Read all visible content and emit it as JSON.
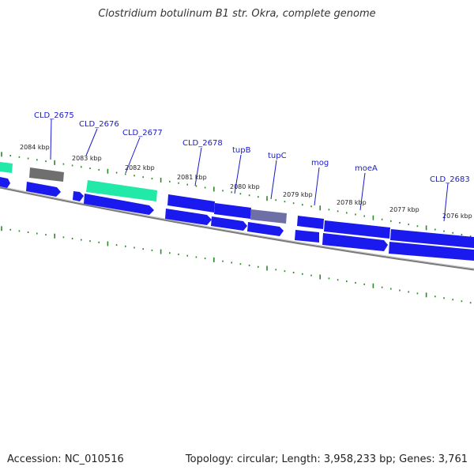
{
  "title": "Clostridium botulinum B1 str. Okra, complete genome",
  "footer": {
    "accession": "Accession: NC_010516",
    "summary": "Topology: circular; Length: 3,958,233 bp; Genes: 3,761"
  },
  "colors": {
    "cds": "#1a1aee",
    "cds_light": "#4466ff",
    "pseudo": "#777777",
    "rna": "#22e8a8",
    "tick": "#2a8a2a",
    "label": "#1a1acc",
    "backbone": "#888888"
  },
  "gene_labels": [
    "CLD_2675",
    "CLD_2676",
    "CLD_2677",
    "CLD_2678",
    "tupB",
    "tupC",
    "mog",
    "moeA",
    "CLD_2683"
  ],
  "kbp_labels": [
    "2084 kbp",
    "2083 kbp",
    "2082 kbp",
    "2081 kbp",
    "2080 kbp",
    "2079 kbp",
    "2078 kbp",
    "2077 kbp",
    "2076 kbp"
  ]
}
